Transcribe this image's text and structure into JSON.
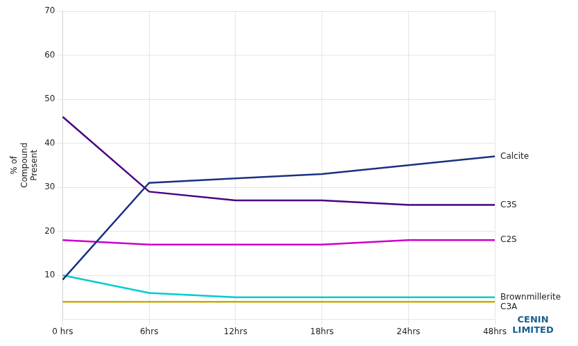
{
  "chart_data": {
    "type": "line",
    "ylabel": "% of\nCompound\nPresent",
    "categories": [
      "0 hrs",
      "6hrs",
      "12hrs",
      "18hrs",
      "24hrs",
      "48hrs"
    ],
    "series": [
      {
        "name": "Calcite",
        "color": "#1a3080",
        "values": [
          9,
          31,
          32,
          33,
          35,
          37
        ]
      },
      {
        "name": "C3S",
        "color": "#4a0080",
        "values": [
          46,
          29,
          27,
          27,
          26,
          26
        ]
      },
      {
        "name": "C2S",
        "color": "#cc00cc",
        "values": [
          18,
          17,
          17,
          17,
          18,
          18
        ]
      },
      {
        "name": "Brownmillerite",
        "color": "#00cccc",
        "values": [
          10,
          6,
          5,
          5,
          5,
          5
        ]
      },
      {
        "name": "C3A",
        "color": "#ccaa00",
        "values": [
          4,
          4,
          4,
          4,
          4,
          4
        ]
      }
    ],
    "ylim": [
      0,
      70
    ],
    "yticks": [
      10,
      20,
      30,
      40,
      50,
      60,
      70
    ],
    "grid": true,
    "annotations": [
      "CENIN\nLIMITED"
    ]
  }
}
